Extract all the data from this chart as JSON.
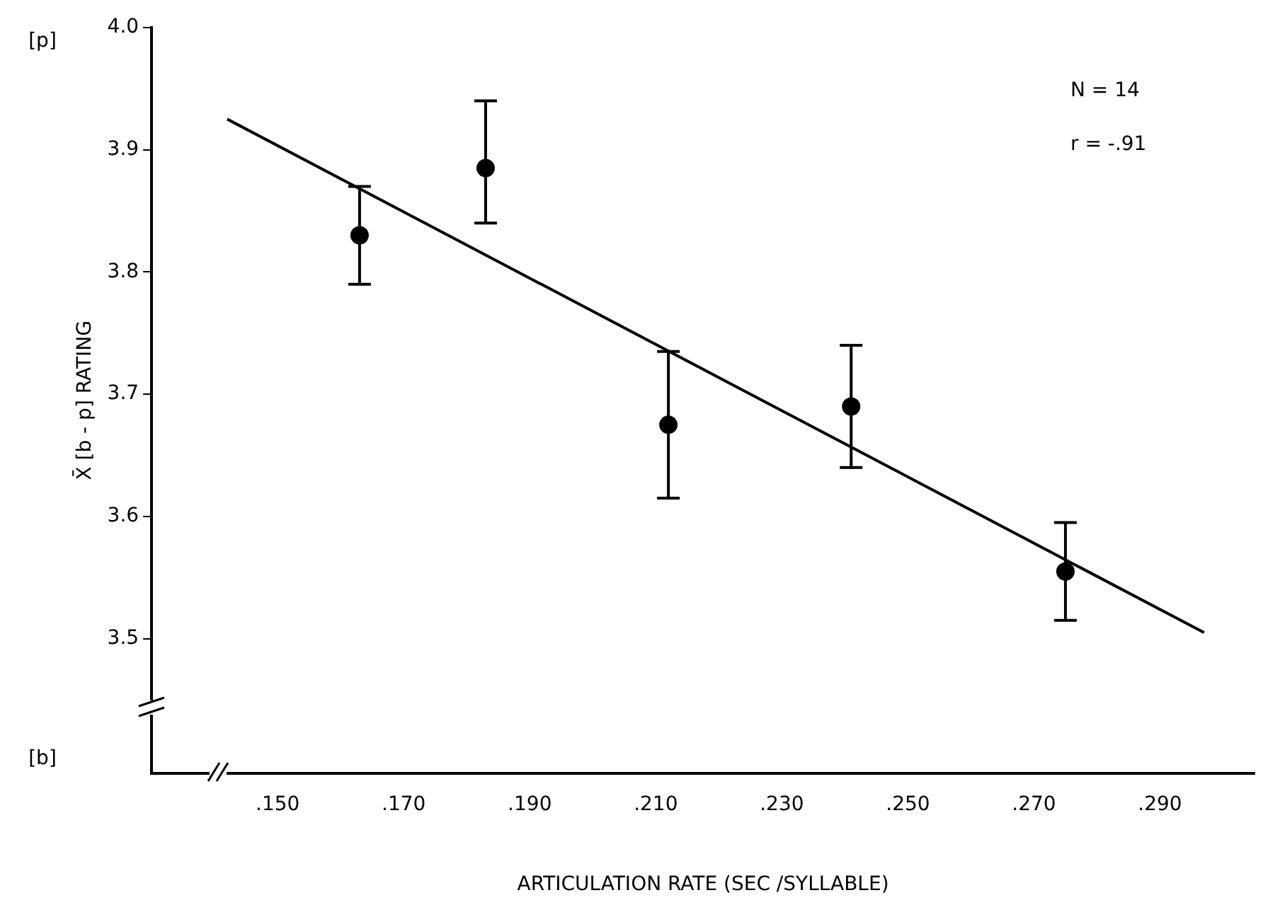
{
  "chart_data": {
    "type": "scatter",
    "xlabel": "ARTICULATION RATE (SEC /SYLLABLE)",
    "ylabel": "X̄ [b - p] RATING",
    "annotations": [
      "N = 14",
      "r = -.91",
      "[p]",
      "[b]"
    ],
    "xlim": [
      0.13,
      0.305
    ],
    "ylim": [
      3.39,
      4.0
    ],
    "xticks": [
      {
        "value": 0.15,
        "label": ".150"
      },
      {
        "value": 0.17,
        "label": ".170"
      },
      {
        "value": 0.19,
        "label": ".190"
      },
      {
        "value": 0.21,
        "label": ".210"
      },
      {
        "value": 0.23,
        "label": ".230"
      },
      {
        "value": 0.25,
        "label": ".250"
      },
      {
        "value": 0.27,
        "label": ".270"
      },
      {
        "value": 0.29,
        "label": ".290"
      }
    ],
    "yticks": [
      3.5,
      3.6,
      3.7,
      3.8,
      3.9,
      {
        "value": 4.0,
        "label": "4.0"
      }
    ],
    "grid": false,
    "legend": false,
    "marker": "circle",
    "series": [
      {
        "color": "#000000",
        "x": [
          0.163,
          0.183,
          0.212,
          0.241,
          0.275
        ],
        "values": [
          3.83,
          3.885,
          3.675,
          3.69,
          3.555
        ],
        "errors": [
          [
            3.79,
            3.87
          ],
          [
            3.84,
            3.94
          ],
          [
            3.615,
            3.735
          ],
          [
            3.64,
            3.74
          ],
          [
            3.515,
            3.595
          ]
        ]
      },
      {
        "type": "line",
        "color": "#000000",
        "marker": "none",
        "x": [
          0.142,
          0.297
        ],
        "values": [
          3.925,
          3.505
        ]
      }
    ]
  }
}
